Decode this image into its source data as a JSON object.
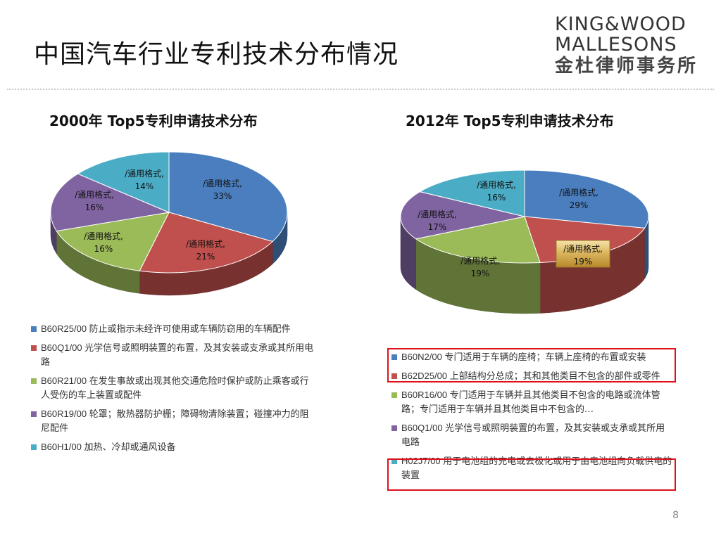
{
  "title": "中国汽车行业专利技术分布情况",
  "logo": {
    "line1": "KING&WOOD",
    "line2": "MALLESONS",
    "line3": "金杜律师事务所"
  },
  "page_number": "8",
  "chart_data": [
    {
      "type": "pie",
      "title": "2000年 Top5专利申请技术分布",
      "slices": [
        {
          "label": "/通用格式,",
          "value": 33,
          "color": "#4a7ebf"
        },
        {
          "label": "/通用格式,",
          "value": 21,
          "color": "#c0504d"
        },
        {
          "label": "/通用格式,",
          "value": 16,
          "color": "#9bbb59"
        },
        {
          "label": "/通用格式,",
          "value": 16,
          "color": "#8064a2"
        },
        {
          "label": "/通用格式,",
          "value": 14,
          "color": "#4bacc6"
        }
      ],
      "legend": [
        {
          "code": "B60R25/00",
          "text": "防止或指示未经许可使用或车辆防窃用的车辆配件",
          "color": "#4a7ebf"
        },
        {
          "code": "B60Q1/00",
          "text": "光学信号或照明装置的布置，及其安装或支承或其所用电路",
          "color": "#c0504d"
        },
        {
          "code": "B60R21/00",
          "text": "在发生事故或出现其他交通危险时保护或防止乘客或行人受伤的车上装置或配件",
          "color": "#9bbb59"
        },
        {
          "code": "B60R19/00",
          "text": "轮罩；散热器防护栅；障碍物清除装置；碰撞冲力的阻尼配件",
          "color": "#8064a2"
        },
        {
          "code": "B60H1/00",
          "text": "加热、冷却或通风设备",
          "color": "#4bacc6"
        }
      ]
    },
    {
      "type": "pie",
      "title": "2012年 Top5专利申请技术分布",
      "slices": [
        {
          "label": "/通用格式,",
          "value": 29,
          "color": "#4a7ebf"
        },
        {
          "label": "/通用格式,",
          "value": 19,
          "color": "#c0504d"
        },
        {
          "label": "/通用格式,",
          "value": 19,
          "color": "#9bbb59"
        },
        {
          "label": "/通用格式,",
          "value": 17,
          "color": "#8064a2"
        },
        {
          "label": "/通用格式,",
          "value": 16,
          "color": "#4bacc6"
        }
      ],
      "legend": [
        {
          "code": "B60N2/00",
          "text": "专门适用于车辆的座椅；车辆上座椅的布置或安装",
          "color": "#4a7ebf"
        },
        {
          "code": "B62D25/00",
          "text": "上部结构分总成；其和其他类目不包含的部件或零件",
          "color": "#c0504d"
        },
        {
          "code": "B60R16/00",
          "text": "专门适用于车辆并且其他类目不包含的电路或流体管路；专门适用于车辆并且其他类目中不包含的…",
          "color": "#9bbb59"
        },
        {
          "code": "B60Q1/00",
          "text": "光学信号或照明装置的布置，及其安装或支承或其所用电路",
          "color": "#8064a2"
        },
        {
          "code": "H02J7/00",
          "text": "用于电池组的充电或去极化或用于由电池组向负载供电的装置",
          "color": "#4bacc6"
        }
      ]
    }
  ]
}
